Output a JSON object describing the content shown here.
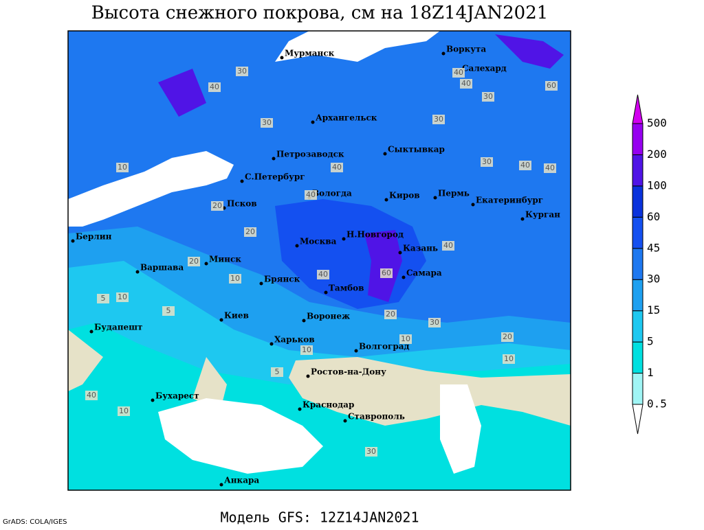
{
  "header": {
    "title": "Высота снежного покрова, см на 18Z14JAN2021"
  },
  "cities": [
    "Мурманск",
    "Воркута",
    "Салехард",
    "Архангельск",
    "Петрозаводск",
    "Сыктывкар",
    "С.Петербург",
    "Вологда",
    "Киров",
    "Пермь",
    "Екатеринбург",
    "Курган",
    "Псков",
    "Н.Новгород",
    "Казань",
    "Москва",
    "Берлин",
    "Минск",
    "Варшава",
    "Брянск",
    "Тамбов",
    "Самара",
    "Киев",
    "Воронеж",
    "Харьков",
    "Волгоград",
    "Будапешт",
    "Ростов-на-Дону",
    "Бухарест",
    "Краснодар",
    "Ставрополь",
    "Анкара"
  ],
  "contour_labels": [
    30,
    40,
    40,
    60,
    30,
    40,
    30,
    30,
    40,
    30,
    40,
    40,
    10,
    20,
    20,
    20,
    10,
    40,
    40,
    40,
    60,
    20,
    30,
    20,
    10,
    10,
    10,
    10,
    5,
    5,
    40,
    10,
    5,
    30
  ],
  "colorbar": {
    "levels": [
      0.5,
      1,
      5,
      15,
      30,
      45,
      60,
      100,
      200,
      500
    ],
    "colors": [
      "#ffffff",
      "#a0f5f5",
      "#00e0e0",
      "#1ec8f0",
      "#1ea0f0",
      "#1e78f0",
      "#1450f0",
      "#0a32dc",
      "#5014e6",
      "#9600f0",
      "#d200f0"
    ]
  },
  "footer": {
    "model": "Модель GFS: 12Z14JAN2021",
    "credit": "GrADS: COLA/IGES"
  }
}
